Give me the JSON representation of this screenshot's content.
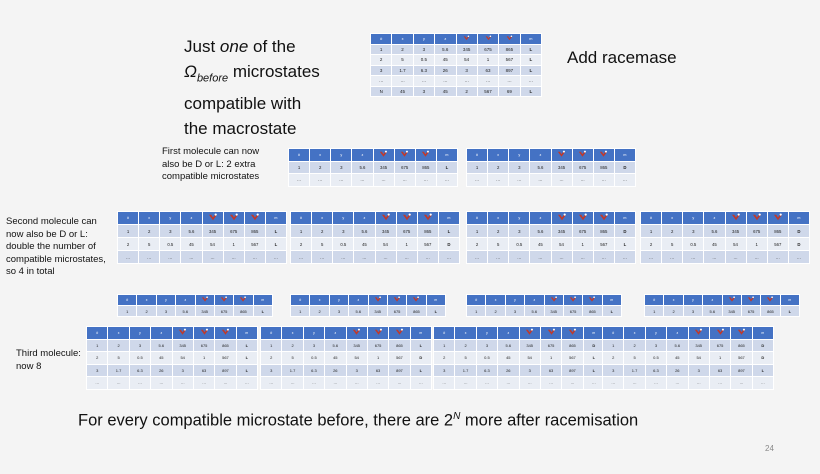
{
  "main_text": {
    "line1_prefix": "Just ",
    "line1_em": "one",
    "line1_suffix": " of the",
    "omega_symbol": "Ω",
    "omega_sub": "before",
    "line2_suffix": " microstates",
    "line3": "compatible with",
    "line4": "the macrostate"
  },
  "add_label": "Add racemase",
  "first_label": "First molecule can now also be D or L: 2 extra compatible microstates",
  "second_label": "Second molecule can now also be D or L: double the number of compatible microstates, so 4 in total",
  "third_label": "Third molecule: now 8",
  "bottom_prefix": "For every compatible microstate before, there are 2",
  "bottom_sup": "N",
  "bottom_suffix": " more after racemisation",
  "page_number": "24",
  "header_cells": [
    "#",
    "x",
    "y",
    "z",
    "",
    "",
    "",
    "m"
  ],
  "rows": {
    "r1": [
      "1",
      "2",
      "3",
      "5.6",
      "345",
      "675",
      "865"
    ],
    "r2": [
      "2",
      "5",
      "0.5",
      "45",
      "54",
      "1",
      "567"
    ],
    "r3": [
      "3",
      "1.7",
      "6.3",
      "26",
      "3",
      "63",
      "897"
    ],
    "dots": [
      "…",
      "…",
      "…",
      "…",
      "…",
      "…",
      "…",
      "…"
    ],
    "rN": [
      "N",
      "45",
      "3",
      "45",
      "2",
      "567",
      "69"
    ]
  },
  "chirality": {
    "L": "L",
    "D": "D"
  },
  "colors": {
    "header": "#4472c4",
    "row_odd": "#cfd8ea",
    "row_even": "#e9edf4",
    "L": "#d22222",
    "D": "#2a9a2a",
    "molecule_icon": "#c0392b"
  }
}
